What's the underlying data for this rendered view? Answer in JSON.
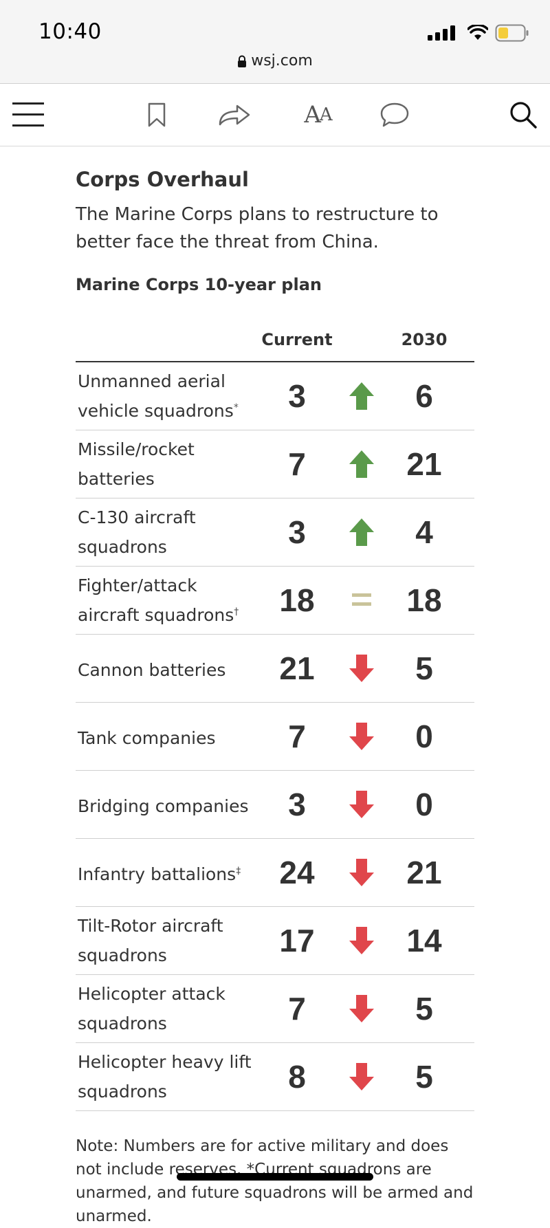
{
  "status": {
    "time": "10:40",
    "url": "wsj.com"
  },
  "toolbar": {
    "menu_icon": "hamburger-icon",
    "bookmark_icon": "bookmark-icon",
    "share_icon": "share-icon",
    "text_size_label_big": "A",
    "text_size_label_small": "A",
    "comment_icon": "comment-icon",
    "search_icon": "search-icon"
  },
  "article": {
    "title": "Corps Overhaul",
    "subtitle": "The Marine Corps plans to restructure to better face the threat from China.",
    "plan_title": "Marine Corps 10-year plan",
    "col_current": "Current",
    "col_future": "2030",
    "rows": [
      {
        "label": "Unmanned aerial vehicle squadrons",
        "mark": "*",
        "current": "3",
        "trend": "up",
        "future": "6"
      },
      {
        "label": "Missile/rocket batteries",
        "mark": "",
        "current": "7",
        "trend": "up",
        "future": "21"
      },
      {
        "label": "C-130 aircraft squadrons",
        "mark": "",
        "current": "3",
        "trend": "up",
        "future": "4"
      },
      {
        "label": "Fighter/attack aircraft squadrons",
        "mark": "†",
        "current": "18",
        "trend": "equal",
        "future": "18"
      },
      {
        "label": "Cannon batteries",
        "mark": "",
        "current": "21",
        "trend": "down",
        "future": "5"
      },
      {
        "label": "Tank companies",
        "mark": "",
        "current": "7",
        "trend": "down",
        "future": "0"
      },
      {
        "label": "Bridging companies",
        "mark": "",
        "current": "3",
        "trend": "down",
        "future": "0"
      },
      {
        "label": "Infantry battalions",
        "mark": "‡",
        "current": "24",
        "trend": "down",
        "future": "21"
      },
      {
        "label": "Tilt-Rotor aircraft squadrons",
        "mark": "",
        "current": "17",
        "trend": "down",
        "future": "14"
      },
      {
        "label": "Helicopter attack squadrons",
        "mark": "",
        "current": "7",
        "trend": "down",
        "future": "5"
      },
      {
        "label": "Helicopter heavy lift squadrons",
        "mark": "",
        "current": "8",
        "trend": "down",
        "future": "5"
      }
    ],
    "note": "Note: Numbers are for active military and does not include reserves. *Current squadrons are unarmed, and future squadrons will be armed and unarmed."
  },
  "colors": {
    "up": "#5a9a4a",
    "down": "#e0464b",
    "equal": "#c9c39a"
  }
}
